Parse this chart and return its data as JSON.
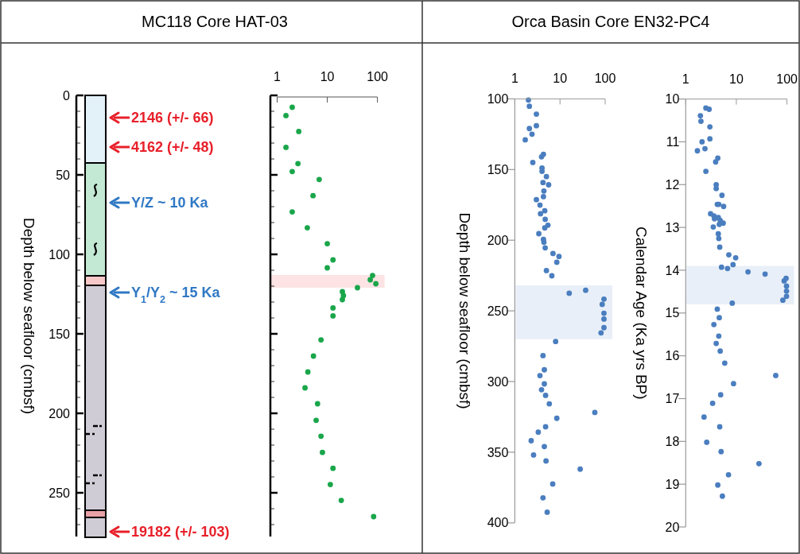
{
  "chart_data": [
    {
      "type": "bar",
      "stacked": true,
      "ylabel": "Depth below seafloor (cmbsf)",
      "categories": [
        null
      ],
      "series": [
        {
          "color": "#e3f1f8",
          "values": [
            42.5
          ]
        },
        {
          "color": "#c3e8d4",
          "values": [
            71
          ]
        },
        {
          "color": "#f8c8c8",
          "values": [
            6
          ]
        },
        {
          "color": "#d0ccd6",
          "values": [
            141.5
          ]
        },
        {
          "color": "#e8a0a6",
          "values": [
            4.5
          ]
        },
        {
          "color": "#d0ccd6",
          "values": [
            12.5
          ]
        }
      ],
      "ylim": [
        277.5,
        0
      ],
      "yticks": [
        0,
        {
          "value": 10,
          "label": null
        },
        {
          "value": 20,
          "label": null
        },
        {
          "value": 30,
          "label": null
        },
        {
          "value": 40,
          "label": null
        },
        50,
        {
          "value": 60,
          "label": null
        },
        {
          "value": 70,
          "label": null
        },
        {
          "value": 80,
          "label": null
        },
        {
          "value": 90,
          "label": null
        },
        100,
        {
          "value": 110,
          "label": null
        },
        {
          "value": 120,
          "label": null
        },
        {
          "value": 130,
          "label": null
        },
        {
          "value": 140,
          "label": null
        },
        150,
        {
          "value": 160,
          "label": null
        },
        {
          "value": 170,
          "label": null
        },
        {
          "value": 180,
          "label": null
        },
        {
          "value": 190,
          "label": null
        },
        200,
        {
          "value": 210,
          "label": null
        },
        {
          "value": 220,
          "label": null
        },
        {
          "value": 230,
          "label": null
        },
        {
          "value": 240,
          "label": null
        },
        250,
        {
          "value": 260,
          "label": null
        },
        {
          "value": 270,
          "label": null
        }
      ],
      "annotations": [
        "2146 (+/- 66)",
        "4162 (+/- 48)",
        "Y/Z ~ 10 Ka",
        "Y$_{1}$/Y$_{2}$ ~ 15 Ka",
        "19182 (+/- 103)"
      ]
    },
    {
      "type": "scatter",
      "log": "x",
      "marker": "circle",
      "tick_labels": "x",
      "title": "MC118 Core HAT-03",
      "xlim": [
        1,
        100
      ],
      "xticks": [
        1,
        10,
        100
      ],
      "ylim": [
        277.5,
        0
      ],
      "yticks": [
        0,
        {
          "value": 10,
          "label": null
        },
        {
          "value": 20,
          "label": null
        },
        {
          "value": 30,
          "label": null
        },
        {
          "value": 40,
          "label": null
        },
        50,
        {
          "value": 60,
          "label": null
        },
        {
          "value": 70,
          "label": null
        },
        {
          "value": 80,
          "label": null
        },
        {
          "value": 90,
          "label": null
        },
        100,
        {
          "value": 110,
          "label": null
        },
        {
          "value": 120,
          "label": null
        },
        {
          "value": 130,
          "label": null
        },
        {
          "value": 140,
          "label": null
        },
        150,
        {
          "value": 160,
          "label": null
        },
        {
          "value": 170,
          "label": null
        },
        {
          "value": 180,
          "label": null
        },
        {
          "value": 190,
          "label": null
        },
        200,
        {
          "value": 210,
          "label": null
        },
        {
          "value": 220,
          "label": null
        },
        {
          "value": 230,
          "label": null
        },
        {
          "value": 240,
          "label": null
        },
        250,
        {
          "value": 260,
          "label": null
        },
        {
          "value": 270,
          "label": null
        }
      ],
      "bands": [
        {
          "axis": "y",
          "from": 113,
          "to": 121,
          "color": "#fde3e3"
        }
      ],
      "series": [
        {
          "color": "#1aa64a",
          "x": [
            2.0,
            1.5,
            2.7,
            1.5,
            2.6,
            2.0,
            6.9,
            5.2,
            2.0,
            4.0,
            10,
            13,
            10,
            80,
            72,
            93,
            40,
            20,
            21,
            20,
            13,
            13,
            7.5,
            5.3,
            4.1,
            3.6,
            6.4,
            6.0,
            7.5,
            8.0,
            13,
            11.5,
            19,
            84
          ],
          "values": [
            7.5,
            12.7,
            22.7,
            32.7,
            42.9,
            47.9,
            52.9,
            63.1,
            73.3,
            83.3,
            93.3,
            103.5,
            108.5,
            113.3,
            116,
            118.5,
            121,
            123.5,
            126,
            128.5,
            133.7,
            138.7,
            153.8,
            164,
            174,
            184,
            194,
            204.4,
            214.4,
            224.6,
            234.6,
            244.8,
            254.8,
            265
          ]
        }
      ]
    },
    {
      "type": "scatter",
      "log": "x",
      "marker": "circle",
      "title": "Orca Basin Core EN32-PC4",
      "ylabel": "Depth below seafloor (cmbsf)",
      "xlim": [
        1,
        100
      ],
      "xticks": [
        1,
        10,
        100
      ],
      "ylim": [
        400,
        100
      ],
      "yticks": [
        100,
        150,
        200,
        250,
        300,
        350,
        400
      ],
      "bands": [
        {
          "axis": "y",
          "from": 232,
          "to": 270,
          "color": "#e9eff8"
        }
      ],
      "series": [
        {
          "color": "#4a7ebf",
          "x": [
            2.0,
            2.1,
            3.0,
            3.0,
            2.1,
            2.4,
            1.7,
            4.3,
            3.9,
            2.5,
            4.0,
            4.0,
            5.0,
            4.2,
            5.6,
            4.4,
            4.3,
            3.0,
            3.6,
            4.6,
            3.7,
            4.7,
            5.4,
            4.6,
            3.4,
            4.3,
            4.4,
            4.7,
            7.0,
            9.5,
            8.5,
            5.0,
            6.6,
            37,
            16,
            94,
            86,
            94,
            94,
            94,
            81,
            8.0,
            4.2,
            4.5,
            3.6,
            4.5,
            3.9,
            4.8,
            5.8,
            59,
            8.5,
            4.8,
            3.3,
            2.3,
            4.5,
            2.6,
            4.9,
            28,
            6.9,
            4.2,
            5.2
          ],
          "values": [
            100.8,
            105.2,
            110.8,
            119,
            121,
            125,
            129,
            139.2,
            141,
            145,
            149,
            151.3,
            155,
            159.2,
            160.8,
            165.2,
            169.2,
            171.3,
            175.2,
            179.2,
            181.3,
            185.2,
            189.4,
            191.3,
            195.4,
            199.4,
            201.5,
            205.4,
            209.4,
            211.5,
            215.6,
            221.5,
            225.2,
            235.4,
            237.5,
            241.7,
            245.4,
            251.7,
            255.8,
            261.9,
            265.6,
            271.7,
            281.7,
            291.7,
            295.8,
            301.7,
            305.8,
            309.8,
            315.8,
            321.9,
            326,
            332,
            335.8,
            341.9,
            346,
            352,
            356.2,
            362,
            372.5,
            382.3,
            392.5
          ]
        }
      ]
    },
    {
      "type": "scatter",
      "log": "x",
      "marker": "circle",
      "ylabel": "Calendar Age (Ka yrs BP)",
      "xlim": [
        1,
        100
      ],
      "xticks": [
        1,
        10,
        100
      ],
      "ylim": [
        20,
        10
      ],
      "yticks": [
        10,
        11,
        12,
        13,
        14,
        15,
        16,
        17,
        18,
        19,
        20
      ],
      "bands": [
        {
          "axis": "y",
          "from": 13.9,
          "to": 14.8,
          "color": "#e9eff8"
        }
      ],
      "series": [
        {
          "color": "#4a7ebf",
          "x": [
            2.5,
            2.9,
            1.95,
            2.0,
            3.0,
            3.0,
            2.1,
            2.4,
            1.7,
            4.3,
            3.9,
            2.5,
            4.0,
            4.0,
            5.2,
            4.5,
            4.2,
            5.6,
            3.1,
            3.6,
            4.4,
            3.7,
            4.8,
            5.5,
            4.6,
            3.5,
            4.4,
            4.5,
            4.7,
            7.1,
            9.7,
            8.6,
            5.1,
            6.7,
            17,
            37,
            96,
            88,
            98,
            98,
            98,
            83,
            8.3,
            4.2,
            4.6,
            3.6,
            4.5,
            4.0,
            4.8,
            5.9,
            60,
            8.8,
            4.9,
            3.4,
            2.3,
            4.7,
            2.6,
            5.0,
            28,
            7.0,
            4.3,
            5.3
          ],
          "values": [
            10.21,
            10.24,
            10.39,
            10.52,
            10.65,
            10.93,
            11.0,
            11.16,
            11.21,
            11.38,
            11.47,
            11.69,
            12.0,
            12.09,
            12.25,
            12.46,
            12.46,
            12.51,
            12.68,
            12.73,
            12.77,
            12.8,
            12.84,
            12.9,
            12.93,
            12.99,
            13.15,
            13.26,
            13.46,
            13.64,
            13.71,
            13.87,
            13.93,
            13.96,
            14.04,
            14.09,
            14.19,
            14.25,
            14.37,
            14.49,
            14.61,
            14.7,
            14.77,
            14.91,
            15.11,
            15.27,
            15.54,
            15.71,
            15.89,
            16.17,
            16.46,
            16.65,
            16.91,
            17.11,
            17.43,
            17.66,
            18.02,
            18.24,
            18.52,
            18.78,
            19.02,
            19.28
          ]
        }
      ]
    }
  ]
}
